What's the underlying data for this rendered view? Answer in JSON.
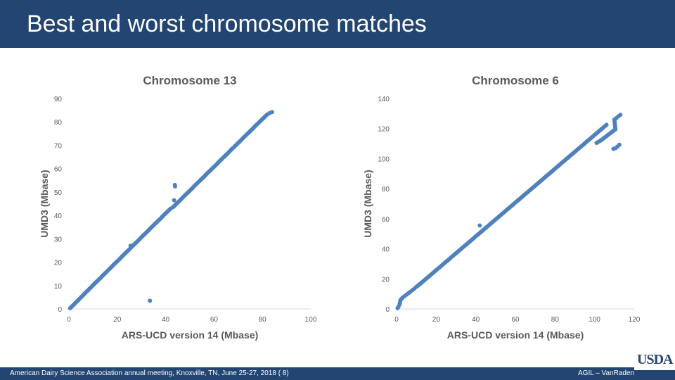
{
  "slide": {
    "title": "Best and worst chromosome matches",
    "footer_left": "American Dairy Science Association annual meeting, Knoxville, TN, June 25-27, 2018 (  8)",
    "footer_right": "AGIL – VanRaden",
    "logo_text": "USDA"
  },
  "colors": {
    "header": "#234572",
    "marker": "#4f81bd",
    "axis": "#d9d9d9",
    "text": "#595959"
  },
  "chart_data": [
    {
      "type": "scatter",
      "title": "Chromosome 13",
      "xlabel": "ARS-UCD version 14 (Mbase)",
      "ylabel": "UMD3 (Mbase)",
      "xlim": [
        0,
        100
      ],
      "ylim": [
        0,
        90
      ],
      "xticks": [
        0,
        20,
        40,
        60,
        80,
        100
      ],
      "yticks": [
        0,
        10,
        20,
        30,
        40,
        50,
        60,
        70,
        80,
        90
      ],
      "grid": false,
      "legend": "none",
      "series": [
        {
          "points": [
            [
              0.5,
              0.3
            ],
            [
              1,
              0.8
            ],
            [
              2,
              1.8
            ],
            [
              3,
              2.9
            ],
            [
              4,
              3.9
            ],
            [
              5,
              5
            ],
            [
              6,
              6
            ],
            [
              7,
              7.1
            ],
            [
              8,
              8.1
            ],
            [
              9,
              9.1
            ],
            [
              10,
              10.2
            ],
            [
              11,
              11.2
            ],
            [
              12,
              12.2
            ],
            [
              13,
              13.2
            ],
            [
              14,
              14.3
            ],
            [
              15,
              15.3
            ],
            [
              16,
              16.3
            ],
            [
              17,
              17.3
            ],
            [
              18,
              18.4
            ],
            [
              19,
              19.4
            ],
            [
              20,
              20.4
            ],
            [
              21,
              21.4
            ],
            [
              22,
              22.5
            ],
            [
              23,
              23.5
            ],
            [
              24,
              24.5
            ],
            [
              25,
              25.5
            ],
            [
              26,
              26.6
            ],
            [
              27,
              27.6
            ],
            [
              28,
              28.6
            ],
            [
              29,
              29.6
            ],
            [
              30,
              30.7
            ],
            [
              31,
              31.7
            ],
            [
              32,
              32.7
            ],
            [
              33,
              33.7
            ],
            [
              34,
              34.8
            ],
            [
              35,
              35.8
            ],
            [
              36,
              36.8
            ],
            [
              37,
              37.8
            ],
            [
              38,
              38.8
            ],
            [
              39,
              39.9
            ],
            [
              40,
              40.9
            ],
            [
              41,
              41.9
            ],
            [
              42,
              42.9
            ],
            [
              43,
              43.5
            ],
            [
              44,
              44.5
            ],
            [
              45,
              45.5
            ],
            [
              46,
              46.5
            ],
            [
              47,
              47.6
            ],
            [
              48,
              48.6
            ],
            [
              49,
              49.6
            ],
            [
              50,
              50.6
            ],
            [
              51,
              51.6
            ],
            [
              52,
              52.7
            ],
            [
              53,
              53.7
            ],
            [
              54,
              54.7
            ],
            [
              55,
              55.7
            ],
            [
              56,
              56.7
            ],
            [
              57,
              57.8
            ],
            [
              58,
              58.8
            ],
            [
              59,
              59.8
            ],
            [
              60,
              60.8
            ],
            [
              61,
              61.8
            ],
            [
              62,
              62.9
            ],
            [
              63,
              63.9
            ],
            [
              64,
              64.9
            ],
            [
              65,
              65.9
            ],
            [
              66,
              66.9
            ],
            [
              67,
              68
            ],
            [
              68,
              69
            ],
            [
              69,
              70
            ],
            [
              70,
              71
            ],
            [
              71,
              72
            ],
            [
              72,
              73.1
            ],
            [
              73,
              74.1
            ],
            [
              74,
              75.1
            ],
            [
              75,
              76.1
            ],
            [
              76,
              77.1
            ],
            [
              77,
              78.2
            ],
            [
              78,
              79.2
            ],
            [
              79,
              80.2
            ],
            [
              80,
              81.2
            ],
            [
              81,
              82.2
            ],
            [
              82,
              83.2
            ],
            [
              83,
              83.8
            ],
            [
              84,
              84.2
            ],
            [
              25.5,
              27
            ],
            [
              43.8,
              53
            ],
            [
              43.9,
              52.4
            ],
            [
              43.5,
              46.5
            ],
            [
              33.5,
              3.5
            ]
          ]
        }
      ]
    },
    {
      "type": "scatter",
      "title": "Chromosome 6",
      "xlabel": "ARS-UCD version 14 (Mbase)",
      "ylabel": "UMD3 (Mbase)",
      "xlim": [
        0,
        120
      ],
      "ylim": [
        0,
        140
      ],
      "xticks": [
        0,
        20,
        40,
        60,
        80,
        100,
        120
      ],
      "yticks": [
        0,
        20,
        40,
        60,
        80,
        100,
        120,
        140
      ],
      "grid": false,
      "legend": "none",
      "series": [
        {
          "points": [
            [
              0.5,
              0.5
            ],
            [
              1,
              1.5
            ],
            [
              1.5,
              3
            ],
            [
              2,
              6
            ],
            [
              3,
              7.5
            ],
            [
              4,
              8.5
            ],
            [
              5,
              9.5
            ],
            [
              6,
              10.5
            ],
            [
              7,
              11.5
            ],
            [
              8,
              12.5
            ],
            [
              9,
              13.5
            ],
            [
              10,
              14.7
            ],
            [
              12,
              16.8
            ],
            [
              14,
              19
            ],
            [
              16,
              21.3
            ],
            [
              18,
              23.5
            ],
            [
              20,
              25.8
            ],
            [
              22,
              28
            ],
            [
              24,
              30.3
            ],
            [
              26,
              32.5
            ],
            [
              28,
              34.8
            ],
            [
              30,
              37
            ],
            [
              32,
              39.3
            ],
            [
              34,
              41.5
            ],
            [
              36,
              43.8
            ],
            [
              38,
              46
            ],
            [
              40,
              48.3
            ],
            [
              42,
              50.5
            ],
            [
              44,
              52.8
            ],
            [
              46,
              55
            ],
            [
              48,
              57.3
            ],
            [
              50,
              59.5
            ],
            [
              52,
              61.8
            ],
            [
              54,
              64
            ],
            [
              56,
              66.3
            ],
            [
              58,
              68.5
            ],
            [
              60,
              70.8
            ],
            [
              62,
              73
            ],
            [
              64,
              75.3
            ],
            [
              66,
              77.5
            ],
            [
              68,
              79.8
            ],
            [
              70,
              82
            ],
            [
              72,
              84.3
            ],
            [
              74,
              86.5
            ],
            [
              76,
              88.8
            ],
            [
              78,
              91
            ],
            [
              80,
              93.3
            ],
            [
              82,
              95.5
            ],
            [
              84,
              97.8
            ],
            [
              86,
              100
            ],
            [
              88,
              102.3
            ],
            [
              90,
              104.5
            ],
            [
              92,
              106.8
            ],
            [
              94,
              109
            ],
            [
              96,
              111.3
            ],
            [
              98,
              113.5
            ],
            [
              100,
              115.8
            ],
            [
              102,
              118
            ],
            [
              104,
              120.3
            ],
            [
              106,
              122.5
            ],
            [
              42,
              55.5
            ],
            [
              101,
              110.5
            ],
            [
              103,
              112
            ],
            [
              105,
              114
            ],
            [
              107,
              116
            ],
            [
              109,
              118
            ],
            [
              110.5,
              119.5
            ],
            [
              110,
              126
            ],
            [
              111,
              127
            ],
            [
              112,
              128.2
            ],
            [
              113,
              129.2
            ],
            [
              109.5,
              106.5
            ],
            [
              110.5,
              107
            ],
            [
              111.5,
              108
            ],
            [
              112.5,
              109.3
            ]
          ]
        }
      ]
    }
  ]
}
